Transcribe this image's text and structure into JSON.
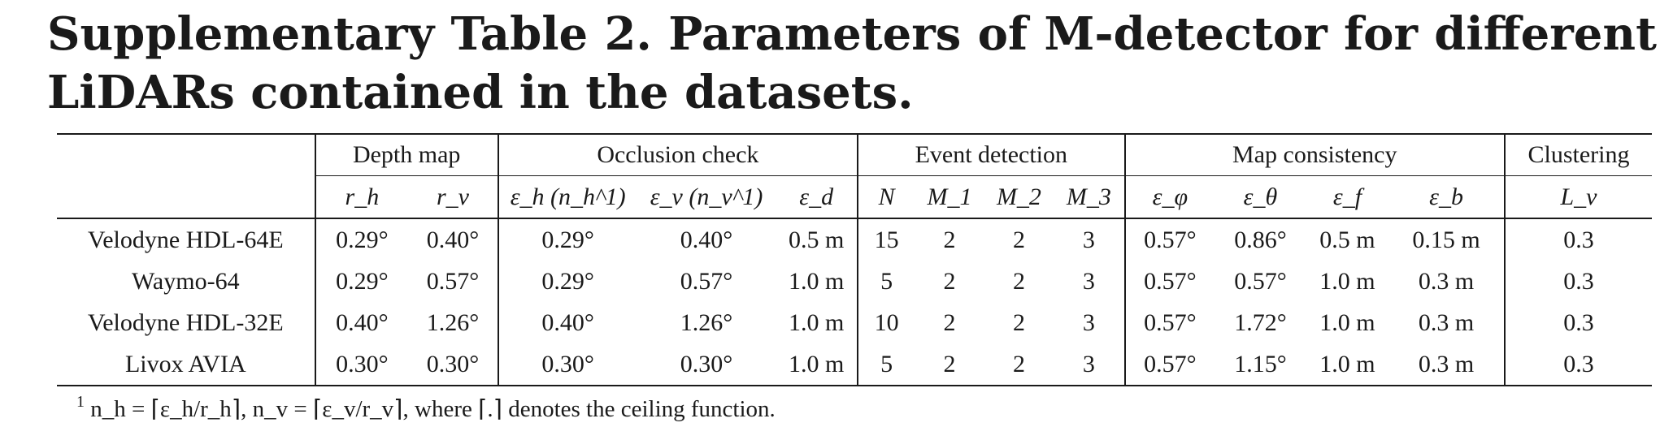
{
  "title": {
    "part1": "Supplementary Table 2",
    "part2": ". Parameters of M-detector for different LiDARs contained in the datasets."
  },
  "table": {
    "groups": [
      "Depth map",
      "Occlusion check",
      "Event detection",
      "Map consistency",
      "Clustering"
    ],
    "symbols": [
      "r_h",
      "r_v",
      "ε_h (n_h^1)",
      "ε_v (n_v^1)",
      "ε_d",
      "N",
      "M_1",
      "M_2",
      "M_3",
      "ε_φ",
      "ε_θ",
      "ε_f",
      "ε_b",
      "L_v"
    ],
    "rows": [
      {
        "name": "Velodyne HDL-64E",
        "cells": [
          "0.29°",
          "0.40°",
          "0.29°",
          "0.40°",
          "0.5 m",
          "15",
          "2",
          "2",
          "3",
          "0.57°",
          "0.86°",
          "0.5 m",
          "0.15 m",
          "0.3"
        ]
      },
      {
        "name": "Waymo-64",
        "cells": [
          "0.29°",
          "0.57°",
          "0.29°",
          "0.57°",
          "1.0 m",
          "5",
          "2",
          "2",
          "3",
          "0.57°",
          "0.57°",
          "1.0 m",
          "0.3 m",
          "0.3"
        ]
      },
      {
        "name": "Velodyne HDL-32E",
        "cells": [
          "0.40°",
          "1.26°",
          "0.40°",
          "1.26°",
          "1.0 m",
          "10",
          "2",
          "2",
          "3",
          "0.57°",
          "1.72°",
          "1.0 m",
          "0.3 m",
          "0.3"
        ]
      },
      {
        "name": "Livox AVIA",
        "cells": [
          "0.30°",
          "0.30°",
          "0.30°",
          "0.30°",
          "1.0 m",
          "5",
          "2",
          "2",
          "3",
          "0.57°",
          "1.15°",
          "1.0 m",
          "0.3 m",
          "0.3"
        ]
      }
    ]
  },
  "footnote": {
    "marker": "1",
    "text": "n_h = ⌈ε_h/r_h⌉, n_v = ⌈ε_v/r_v⌉, where ⌈.⌉ denotes the ceiling function."
  }
}
